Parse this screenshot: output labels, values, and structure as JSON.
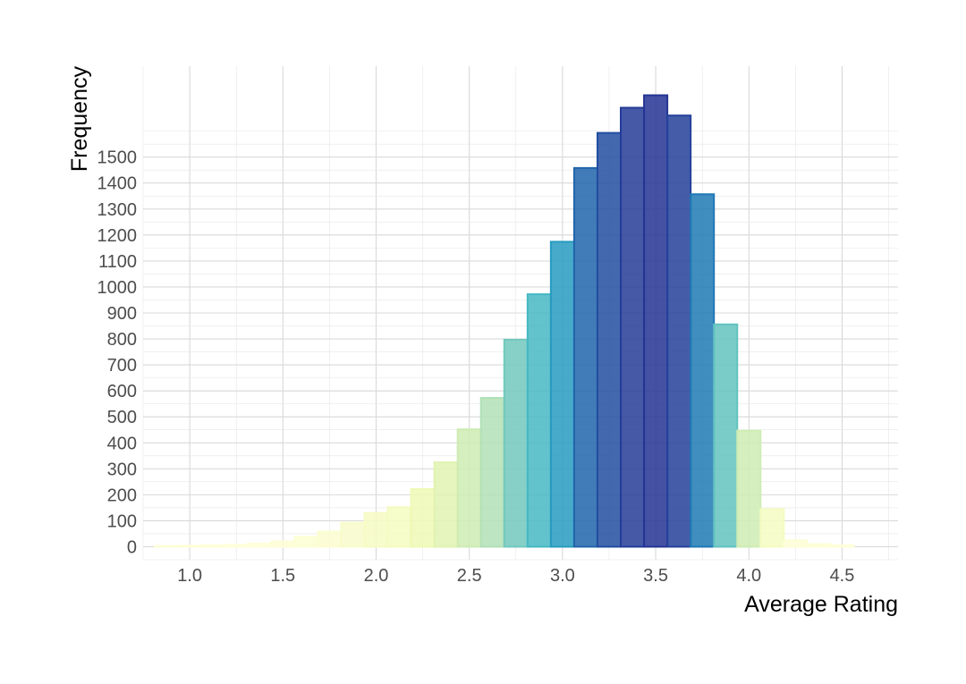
{
  "chart_data": {
    "type": "bar",
    "subtype": "histogram",
    "xlabel": "Average Rating",
    "ylabel": "Frequency",
    "xlim": [
      0.75,
      4.8
    ],
    "ylim": [
      -50,
      1850
    ],
    "x_ticks": [
      "1.0",
      "1.5",
      "2.0",
      "2.5",
      "3.0",
      "3.5",
      "4.0",
      "4.5"
    ],
    "x_tick_values": [
      1.0,
      1.5,
      2.0,
      2.5,
      3.0,
      3.5,
      4.0,
      4.5
    ],
    "y_ticks": [
      "0",
      "100",
      "200",
      "300",
      "400",
      "500",
      "600",
      "700",
      "800",
      "900",
      "1000",
      "1100",
      "1200",
      "1300",
      "1400",
      "1500"
    ],
    "y_tick_values": [
      0,
      100,
      200,
      300,
      400,
      500,
      600,
      700,
      800,
      900,
      1000,
      1100,
      1200,
      1300,
      1400,
      1500
    ],
    "bin_width": 0.125,
    "bin_centers": [
      0.875,
      1.0,
      1.125,
      1.25,
      1.375,
      1.5,
      1.625,
      1.75,
      1.875,
      2.0,
      2.125,
      2.25,
      2.375,
      2.5,
      2.625,
      2.75,
      2.875,
      3.0,
      3.125,
      3.25,
      3.375,
      3.5,
      3.625,
      3.75,
      3.875,
      4.0,
      4.125,
      4.25,
      4.375,
      4.5
    ],
    "values": [
      3,
      4,
      5,
      7,
      12,
      20,
      38,
      58,
      92,
      130,
      152,
      222,
      325,
      452,
      573,
      797,
      972,
      1174,
      1458,
      1593,
      1690,
      1738,
      1660,
      1357,
      856,
      447,
      145,
      25,
      10,
      5
    ],
    "color_scale": [
      "#ffffd9",
      "#edf8b1",
      "#c7e9b4",
      "#7fcdbb",
      "#41b6c4",
      "#1d91c0",
      "#225ea8",
      "#253494"
    ],
    "grid": true,
    "legend": "none"
  }
}
